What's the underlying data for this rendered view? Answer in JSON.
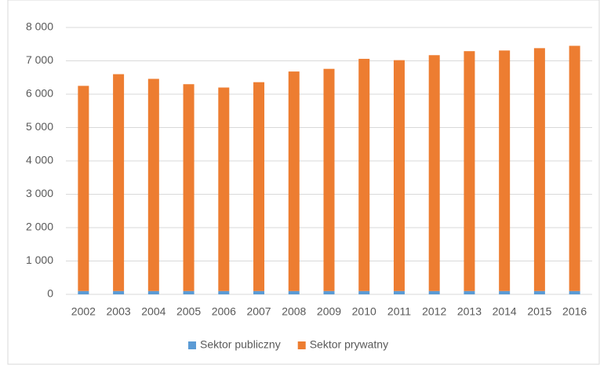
{
  "chart_data": {
    "type": "stacked_bar",
    "categories": [
      "2002",
      "2003",
      "2004",
      "2005",
      "2006",
      "2007",
      "2008",
      "2009",
      "2010",
      "2011",
      "2012",
      "2013",
      "2014",
      "2015",
      "2016"
    ],
    "series": [
      {
        "name": "Sektor publiczny",
        "color": "#5b9bd5",
        "values": [
          100,
          100,
          100,
          100,
          100,
          100,
          100,
          100,
          100,
          100,
          100,
          100,
          100,
          100,
          100
        ]
      },
      {
        "name": "Sektor prywatny",
        "color": "#ed7d31",
        "values": [
          6150,
          6500,
          6360,
          6200,
          6100,
          6260,
          6580,
          6660,
          6960,
          6920,
          7070,
          7190,
          7210,
          7280,
          7350
        ]
      }
    ],
    "ylim": [
      0,
      8000
    ],
    "yticks": [
      0,
      {
        "value": 1000,
        "label": "1 000"
      },
      {
        "value": 2000,
        "label": "2 000"
      },
      {
        "value": 3000,
        "label": "3 000"
      },
      {
        "value": 4000,
        "label": "4 000"
      },
      {
        "value": 5000,
        "label": "5 000"
      },
      {
        "value": 6000,
        "label": "6 000"
      },
      {
        "value": 7000,
        "label": "7 000"
      },
      {
        "value": 8000,
        "label": "8 000"
      }
    ],
    "grid": true,
    "legend": "bottom"
  }
}
